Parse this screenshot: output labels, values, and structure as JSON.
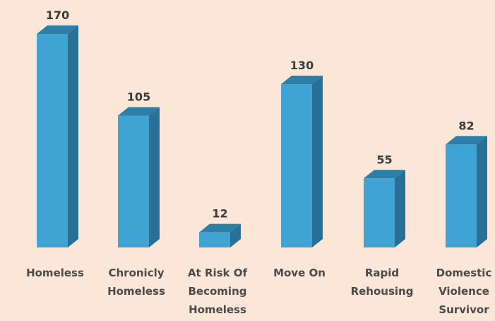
{
  "chart_data": {
    "type": "bar",
    "style": "3d",
    "categories": [
      [
        "Homeless"
      ],
      [
        "Chronicly",
        "Homeless"
      ],
      [
        "At Risk Of",
        "Becoming",
        "Homeless"
      ],
      [
        "Move On"
      ],
      [
        "Rapid",
        "Rehousing"
      ],
      [
        "Domestic",
        "Violence",
        "Survivor"
      ]
    ],
    "values": [
      170,
      105,
      12,
      130,
      55,
      82
    ],
    "data_labels": [
      "170",
      "105",
      "12",
      "130",
      "55",
      "82"
    ],
    "title": "",
    "xlabel": "",
    "ylabel": "",
    "ylim": [
      0,
      170
    ],
    "grid": false,
    "legend": "none",
    "colors": {
      "background": "#fbe6d8",
      "bar_front": "#3fa3d3",
      "bar_top": "#2d7fa8",
      "bar_side": "#2a6f95"
    }
  }
}
